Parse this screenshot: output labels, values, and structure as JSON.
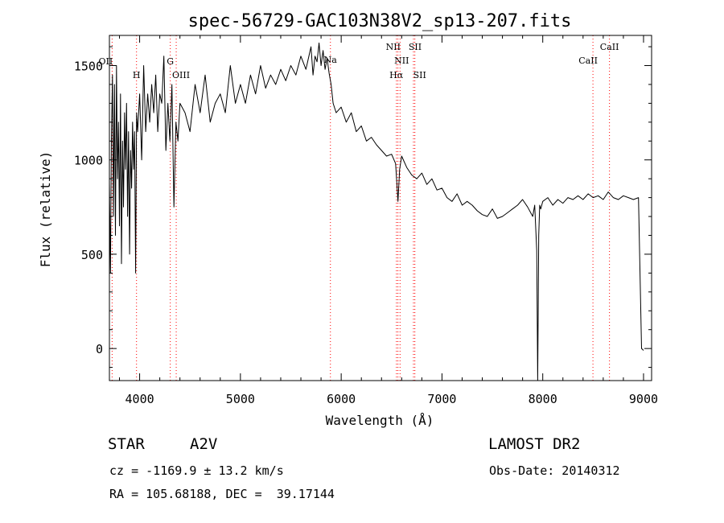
{
  "chart_data": {
    "type": "line",
    "title": "spec-56729-GAC103N38V2_sp13-207.fits",
    "xlabel": "Wavelength (Å)",
    "ylabel": "Flux (relative)",
    "xlim": [
      3700,
      9080
    ],
    "ylim": [
      -170,
      1660
    ],
    "x_ticks": [
      4000,
      5000,
      6000,
      7000,
      8000,
      9000
    ],
    "y_ticks": [
      0,
      500,
      1000,
      1500
    ],
    "grid": false,
    "series": [
      {
        "x": [
          3700,
          3710,
          3720,
          3730,
          3740,
          3750,
          3760,
          3770,
          3780,
          3790,
          3800,
          3810,
          3820,
          3830,
          3840,
          3850,
          3860,
          3870,
          3880,
          3890,
          3900,
          3910,
          3920,
          3930,
          3940,
          3950,
          3960,
          3970,
          3980,
          4000,
          4020,
          4040,
          4060,
          4080,
          4100,
          4120,
          4140,
          4160,
          4180,
          4200,
          4220,
          4240,
          4260,
          4280,
          4300,
          4320,
          4340,
          4360,
          4380,
          4400,
          4450,
          4500,
          4550,
          4600,
          4650,
          4700,
          4750,
          4800,
          4850,
          4900,
          4950,
          5000,
          5050,
          5100,
          5150,
          5200,
          5250,
          5300,
          5350,
          5400,
          5450,
          5500,
          5550,
          5600,
          5650,
          5700,
          5720,
          5740,
          5760,
          5780,
          5800,
          5820,
          5840,
          5860,
          5880,
          5900,
          5920,
          5950,
          6000,
          6050,
          6100,
          6150,
          6200,
          6250,
          6300,
          6350,
          6400,
          6450,
          6500,
          6540,
          6563,
          6580,
          6600,
          6650,
          6700,
          6750,
          6800,
          6850,
          6900,
          6950,
          7000,
          7050,
          7100,
          7150,
          7200,
          7250,
          7300,
          7350,
          7400,
          7450,
          7500,
          7550,
          7600,
          7650,
          7700,
          7750,
          7800,
          7850,
          7900,
          7920,
          7940,
          7950,
          7960,
          7970,
          7980,
          8000,
          8050,
          8100,
          8150,
          8200,
          8250,
          8300,
          8350,
          8400,
          8450,
          8500,
          8550,
          8600,
          8650,
          8700,
          8750,
          8800,
          8850,
          8900,
          8950,
          8980,
          9000
        ],
        "y": [
          880,
          400,
          1100,
          1450,
          700,
          1400,
          600,
          1500,
          900,
          1200,
          650,
          1350,
          450,
          1100,
          750,
          1250,
          950,
          1300,
          700,
          1150,
          500,
          1050,
          850,
          1200,
          950,
          1150,
          400,
          1250,
          1150,
          1350,
          1000,
          1500,
          1150,
          1350,
          1200,
          1400,
          1250,
          1450,
          1150,
          1350,
          1300,
          1550,
          1050,
          1300,
          1100,
          1400,
          750,
          1200,
          1100,
          1300,
          1250,
          1150,
          1400,
          1250,
          1450,
          1200,
          1300,
          1350,
          1250,
          1500,
          1300,
          1400,
          1300,
          1450,
          1350,
          1500,
          1380,
          1450,
          1400,
          1480,
          1420,
          1500,
          1450,
          1550,
          1480,
          1600,
          1450,
          1550,
          1520,
          1620,
          1500,
          1580,
          1480,
          1540,
          1460,
          1400,
          1300,
          1250,
          1280,
          1200,
          1250,
          1150,
          1180,
          1100,
          1120,
          1080,
          1050,
          1020,
          1030,
          980,
          780,
          950,
          1020,
          960,
          920,
          900,
          930,
          870,
          900,
          840,
          850,
          800,
          780,
          820,
          760,
          780,
          760,
          730,
          710,
          700,
          740,
          690,
          700,
          720,
          740,
          760,
          790,
          750,
          700,
          760,
          520,
          -170,
          600,
          760,
          740,
          780,
          800,
          760,
          790,
          770,
          800,
          790,
          810,
          790,
          820,
          800,
          810,
          790,
          830,
          800,
          790,
          810,
          800,
          790,
          800,
          0,
          -10
        ]
      }
    ],
    "line_markers": [
      {
        "label": "OII",
        "x": 3727
      },
      {
        "label": "H",
        "x": 3969
      },
      {
        "label": "G",
        "x": 4304
      },
      {
        "label": "OIII",
        "x": 4363
      },
      {
        "label": "Na",
        "x": 5893
      },
      {
        "label": "NII",
        "x": 6548
      },
      {
        "label": "Hα",
        "x": 6563
      },
      {
        "label": "NII",
        "x": 6584
      },
      {
        "label": "SII",
        "x": 6717
      },
      {
        "label": "SII",
        "x": 6731
      },
      {
        "label": "CaII",
        "x": 8498
      },
      {
        "label": "CaII",
        "x": 8662
      }
    ],
    "colors": {
      "line": "#000000",
      "marker": "#ff0000"
    }
  },
  "info": {
    "object_type": "STAR",
    "subclass": "A2V",
    "survey": "LAMOST DR2",
    "cz": "cz = -1169.9 ± 13.2 km/s",
    "obs_date": "Obs-Date: 20140312",
    "coords": "RA = 105.68188, DEC =  39.17144"
  }
}
